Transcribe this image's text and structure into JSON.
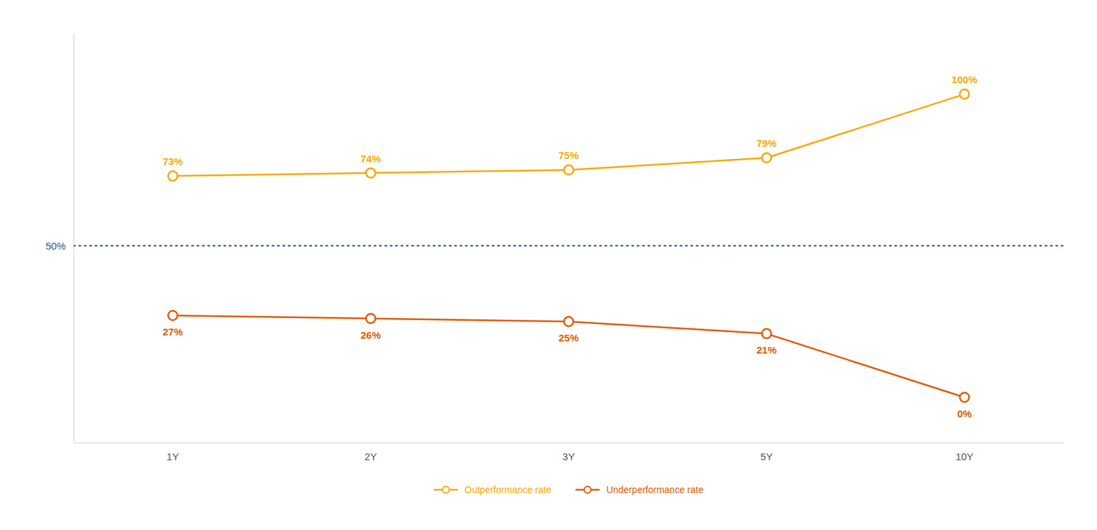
{
  "chart_data": {
    "type": "line",
    "categories": [
      "1Y",
      "2Y",
      "3Y",
      "5Y",
      "10Y"
    ],
    "series": [
      {
        "name": "Outperformance rate",
        "color": "#F5A800",
        "marker": "circle",
        "values": [
          73,
          74,
          75,
          79,
          100
        ],
        "value_labels": [
          "73%",
          "74%",
          "75%",
          "79%",
          "100%"
        ]
      },
      {
        "name": "Underperformance rate",
        "color": "#E05A00",
        "marker": "circle",
        "values": [
          27,
          26,
          25,
          21,
          0
        ],
        "value_labels": [
          "27%",
          "26%",
          "25%",
          "21%",
          "0%"
        ]
      }
    ],
    "ylim": [
      -15,
      120
    ],
    "tick_labels": "x",
    "grid": false,
    "legend": "bottom",
    "data_labels": true,
    "annotations": [
      {
        "y": 50,
        "text": "50%",
        "color": "#2355A0",
        "line_style": "dotted"
      }
    ]
  }
}
